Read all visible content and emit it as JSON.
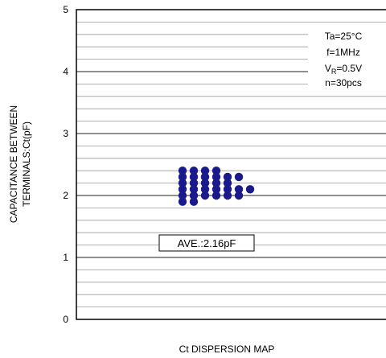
{
  "chart_data": {
    "type": "scatter",
    "xlabel": "Ct DISPERSION MAP",
    "ylabel": [
      "CAPACITANCE BETWEEN",
      "TERMINALS:Ct(pF)"
    ],
    "ylim": [
      0,
      5
    ],
    "y_ticks": [
      "0",
      "1",
      "2",
      "3",
      "4",
      "5"
    ],
    "grid": true,
    "legend_placement": "top-right",
    "conditions": {
      "ta": "Ta=25°C",
      "f": "f=1MHz",
      "vr_main": "V",
      "vr_sub": "R",
      "vr_value": "=0.5V",
      "n": "n=30pcs"
    },
    "annotation": "AVE.:2.16pF",
    "average": 2.16,
    "marker_color": "#1a1a8c",
    "points": [
      {
        "col": 0,
        "y": 1.9
      },
      {
        "col": 0,
        "y": 2.0
      },
      {
        "col": 0,
        "y": 2.1
      },
      {
        "col": 0,
        "y": 2.2
      },
      {
        "col": 0,
        "y": 2.3
      },
      {
        "col": 0,
        "y": 2.4
      },
      {
        "col": 1,
        "y": 1.9
      },
      {
        "col": 1,
        "y": 2.0
      },
      {
        "col": 1,
        "y": 2.1
      },
      {
        "col": 1,
        "y": 2.2
      },
      {
        "col": 1,
        "y": 2.3
      },
      {
        "col": 1,
        "y": 2.4
      },
      {
        "col": 2,
        "y": 2.0
      },
      {
        "col": 2,
        "y": 2.1
      },
      {
        "col": 2,
        "y": 2.2
      },
      {
        "col": 2,
        "y": 2.3
      },
      {
        "col": 2,
        "y": 2.4
      },
      {
        "col": 3,
        "y": 2.0
      },
      {
        "col": 3,
        "y": 2.1
      },
      {
        "col": 3,
        "y": 2.2
      },
      {
        "col": 3,
        "y": 2.3
      },
      {
        "col": 3,
        "y": 2.4
      },
      {
        "col": 4,
        "y": 2.0
      },
      {
        "col": 4,
        "y": 2.1
      },
      {
        "col": 4,
        "y": 2.2
      },
      {
        "col": 4,
        "y": 2.3
      },
      {
        "col": 5,
        "y": 2.0
      },
      {
        "col": 5,
        "y": 2.1
      },
      {
        "col": 5,
        "y": 2.3
      },
      {
        "col": 6,
        "y": 2.1
      }
    ]
  }
}
